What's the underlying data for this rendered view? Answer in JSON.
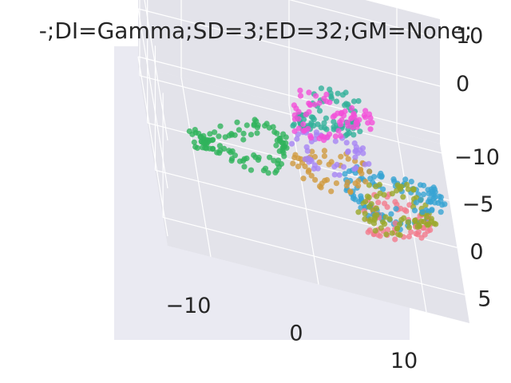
{
  "chart_data": {
    "type": "scatter",
    "projection": "3d",
    "title": "-;DI=Gamma;SD=3;ED=32;GM=None;",
    "xlabel": "",
    "ylabel": "",
    "zlabel": "",
    "x_ticks": [
      "−10",
      "0",
      "10"
    ],
    "y_ticks": [
      "−10",
      "−5",
      "0",
      "5"
    ],
    "z_ticks": [
      "0",
      "10"
    ],
    "xlim": [
      -14,
      14
    ],
    "ylim": [
      -11,
      8
    ],
    "zlim": [
      -12,
      14
    ],
    "grid": true,
    "background_color": "#eaeaf2",
    "pane_color": "#e3e3ea",
    "grid_color": "#ffffff",
    "series": [
      {
        "color": "#f24fd8",
        "shape": "loop",
        "center": [
          2,
          2,
          12
        ],
        "radii": [
          3,
          1.5,
          3.5
        ],
        "count": 70
      },
      {
        "color": "#a685f4",
        "shape": "loop",
        "center": [
          2,
          2,
          5
        ],
        "radii": [
          3,
          1.5,
          1.8
        ],
        "count": 45
      },
      {
        "color": "#cf9a3e",
        "shape": "loop",
        "center": [
          2,
          2,
          1
        ],
        "radii": [
          3,
          1.5,
          1.5
        ],
        "count": 50
      },
      {
        "color": "#2fb35b",
        "shape": "loop",
        "center": [
          -6,
          0,
          -2
        ],
        "radii": [
          4,
          1.5,
          3
        ],
        "count": 110
      },
      {
        "color": "#32b09a",
        "shape": "loop",
        "center": [
          3,
          -7,
          -5
        ],
        "radii": [
          2.5,
          1.5,
          4
        ],
        "count": 75
      },
      {
        "color": "#9aa72b",
        "shape": "loop",
        "center": [
          8,
          4,
          0
        ],
        "radii": [
          3,
          2,
          2
        ],
        "count": 80
      },
      {
        "color": "#f27a8c",
        "shape": "loop",
        "center": [
          8,
          4,
          -2
        ],
        "radii": [
          2.5,
          1.5,
          2
        ],
        "count": 60
      },
      {
        "color": "#37a4d3",
        "shape": "loop",
        "center": [
          8,
          2,
          -1
        ],
        "radii": [
          4,
          2,
          2.5
        ],
        "count": 110
      }
    ]
  }
}
